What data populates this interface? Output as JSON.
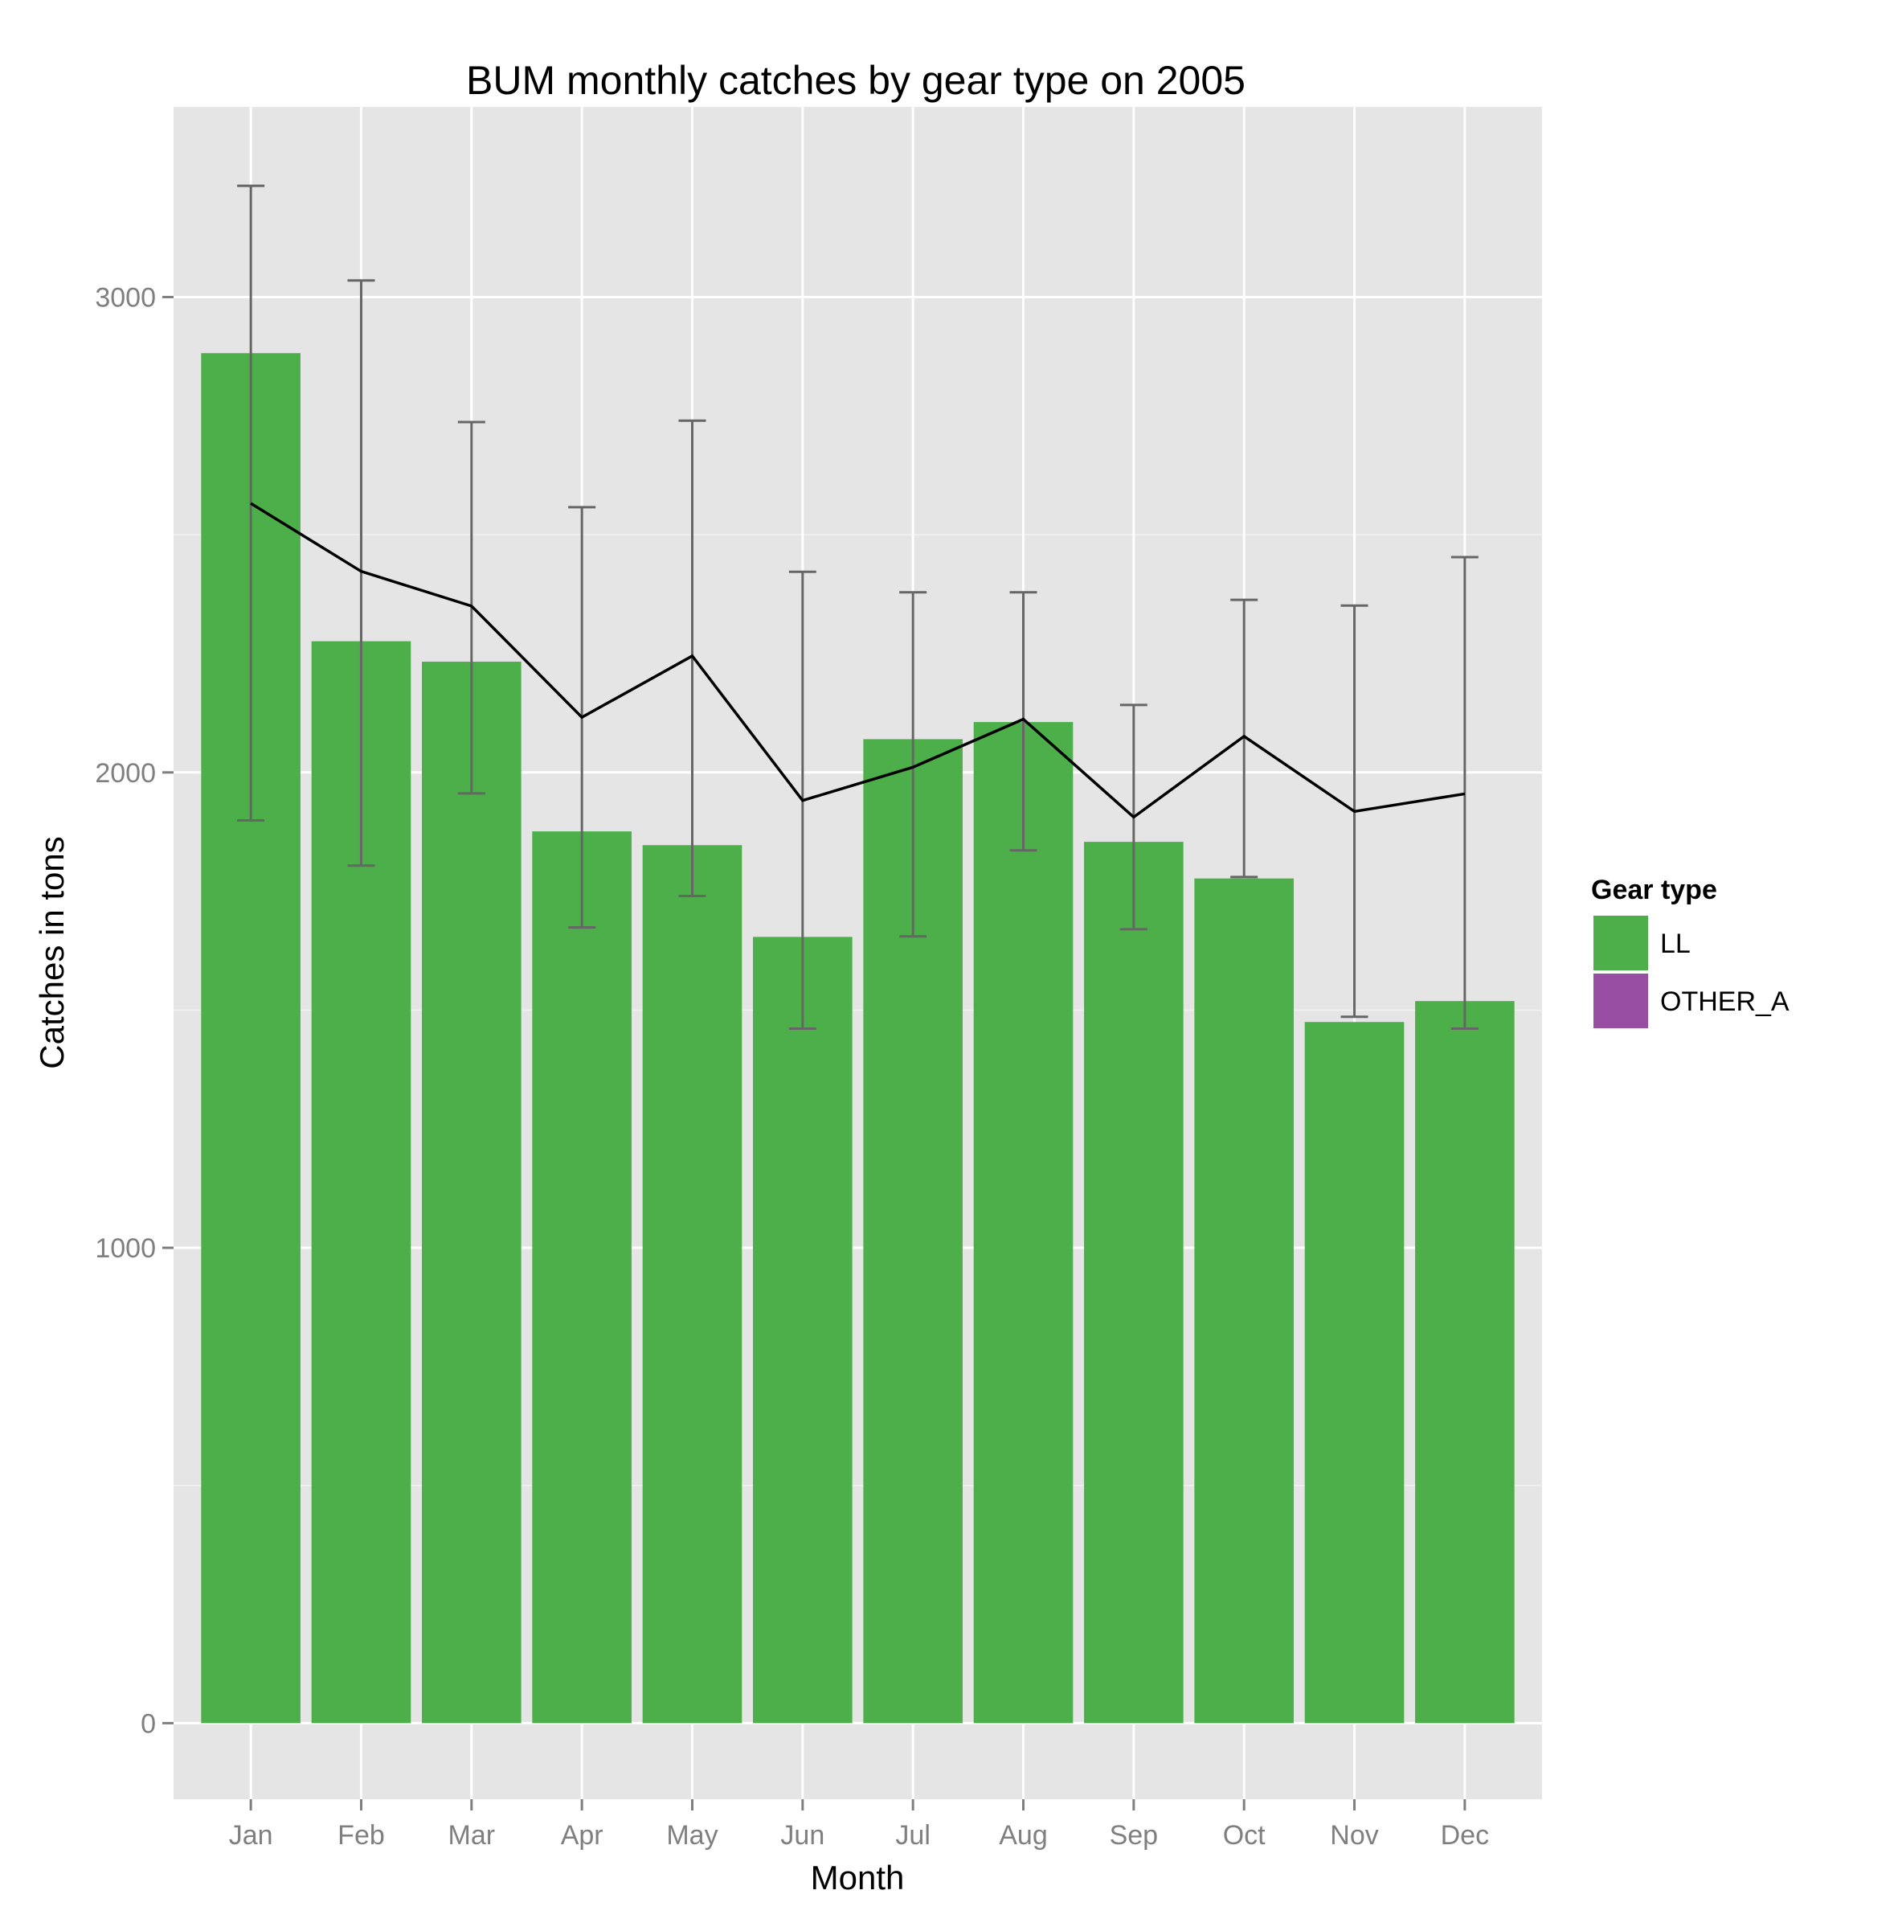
{
  "chart_data": {
    "type": "bar",
    "title": "BUM monthly catches by gear type on 2005",
    "xlabel": "Month",
    "ylabel": "Catches in tons",
    "categories": [
      "Jan",
      "Feb",
      "Mar",
      "Apr",
      "May",
      "Jun",
      "Jul",
      "Aug",
      "Sep",
      "Oct",
      "Nov",
      "Dec"
    ],
    "series": [
      {
        "name": "LL",
        "color": "#4daf4a",
        "values": [
          2882,
          2276,
          2233,
          1876,
          1847,
          1654,
          2070,
          2106,
          1854,
          1777,
          1475,
          1519
        ]
      },
      {
        "name": "OTHER_A",
        "color": "#984ea3",
        "values": [
          0,
          0,
          0,
          0,
          0,
          0,
          0,
          0,
          0,
          0,
          0,
          0
        ]
      }
    ],
    "mean_line": {
      "color": "#000000",
      "values": [
        2566,
        2423,
        2350,
        2116,
        2245,
        1941,
        2011,
        2112,
        1906,
        2076,
        1918,
        1955
      ]
    },
    "error_bars": {
      "color": "#666666",
      "lower": [
        1899,
        1804,
        1956,
        1674,
        1740,
        1461,
        1655,
        1836,
        1670,
        1780,
        1486,
        1461
      ],
      "upper": [
        3234,
        3035,
        2737,
        2558,
        2740,
        2422,
        2379,
        2379,
        2142,
        2363,
        2351,
        2453
      ]
    },
    "y_ticks": [
      0,
      1000,
      2000,
      3000
    ],
    "ylim": [
      -160,
      3400
    ],
    "grid": true,
    "legend": {
      "title": "Gear type",
      "position": "right",
      "entries": [
        {
          "label": "LL",
          "color": "#4daf4a"
        },
        {
          "label": "OTHER_A",
          "color": "#984ea3"
        }
      ]
    },
    "panel_background": "#e5e5e5",
    "grid_color": "#ffffff"
  }
}
